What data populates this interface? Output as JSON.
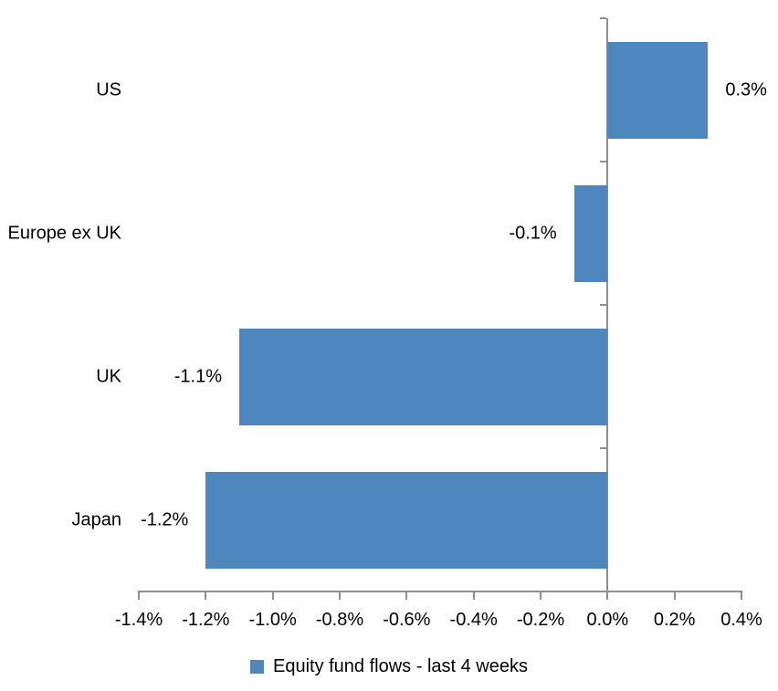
{
  "chart_data": {
    "type": "bar",
    "orientation": "horizontal",
    "title": "",
    "categories": [
      "US",
      "Europe ex UK",
      "UK",
      "Japan"
    ],
    "series": [
      {
        "name": "Equity fund flows - last 4 weeks",
        "values": [
          0.3,
          -0.1,
          -1.1,
          -1.2
        ],
        "data_labels": [
          "0.3%",
          "-0.1%",
          "-1.1%",
          "-1.2%"
        ]
      }
    ],
    "value_unit": "percent",
    "xlim": [
      -1.4,
      0.4
    ],
    "x_tick_values": [
      -1.4,
      -1.2,
      -1.0,
      -0.8,
      -0.6,
      -0.4,
      -0.2,
      0.0,
      0.2,
      0.4
    ],
    "x_tick_labels": [
      "-1.4%",
      "-1.2%",
      "-1.0%",
      "-0.8%",
      "-0.6%",
      "-0.4%",
      "-0.2%",
      "0.0%",
      "0.2%",
      "0.4%"
    ],
    "grid": false,
    "legend_position": "bottom",
    "colors": {
      "bar": "#4e86be",
      "axis": "#8f8f8f",
      "text": "#000000",
      "background": "#ffffff"
    }
  },
  "legend": {
    "label": "Equity fund flows - last 4 weeks"
  }
}
